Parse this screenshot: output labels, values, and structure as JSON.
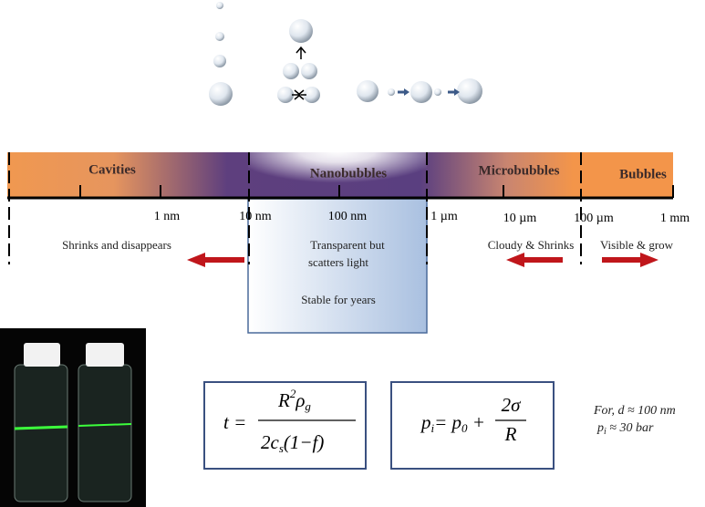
{
  "regions": [
    "Cavities",
    "Nanobubbles",
    "Microbubbles",
    "Bubbles"
  ],
  "scale": [
    "1 nm",
    "10 nm",
    "100 nm",
    "1 µm",
    "10 µm",
    "100 µm",
    "1 mm"
  ],
  "behaviors": {
    "cavities": "Shrinks and disappears",
    "nano": [
      "Transparent but",
      "scatters light"
    ],
    "nano_stability": "Stable for years",
    "micro": "Cloudy & Shrinks",
    "bubbles": "Visible & grow"
  },
  "formulas": [
    {
      "lhs": "t =",
      "num": [
        "R",
        "2",
        "ρ",
        "g"
      ],
      "den": [
        "2c",
        "s",
        "(1−f)"
      ]
    },
    {
      "lhs": [
        "p",
        "i"
      ],
      "mid": [
        "= p",
        "0",
        " +"
      ],
      "num": "2σ",
      "den": "R"
    }
  ],
  "note": [
    "For, d ≈ 100 nm",
    [
      "p",
      "i",
      " ≈ 30 bar"
    ]
  ]
}
